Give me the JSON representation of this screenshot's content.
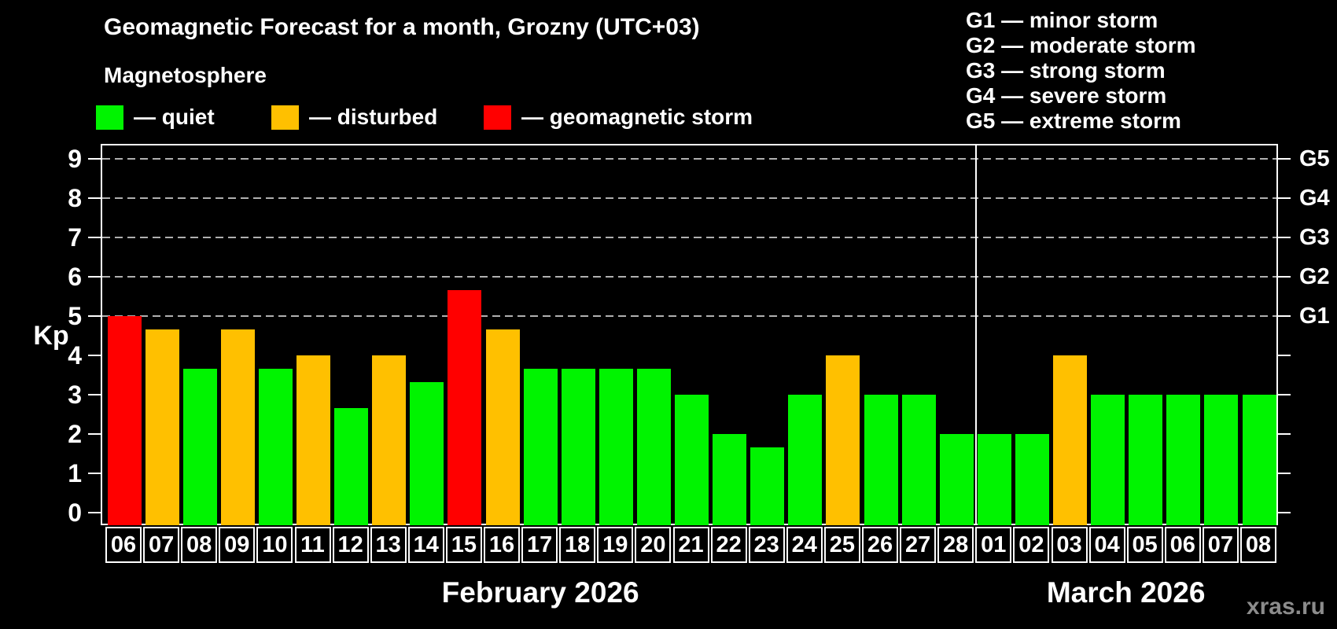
{
  "chart_data": {
    "type": "bar",
    "title": "Geomagnetic Forecast for a month, Grozny (UTC+03)",
    "subtitle": "Magnetosphere",
    "ylabel": "Kp",
    "watermark": "xras.ru",
    "ylim": [
      0,
      9
    ],
    "grid": "dashed horizontal lines at Kp 5-9 only",
    "legend_position": "top-left row",
    "colors": {
      "quiet": "#00f400",
      "disturbed": "#ffc000",
      "storm": "#ff0000",
      "axis": "#ffffff",
      "grid": "#b0b0b0",
      "background": "#000000",
      "watermark": "#8c8c8c"
    },
    "legend": [
      {
        "key": "quiet",
        "label": "— quiet"
      },
      {
        "key": "disturbed",
        "label": "— disturbed"
      },
      {
        "key": "storm",
        "label": "— geomagnetic storm"
      }
    ],
    "g_scale_legend": [
      "G1 — minor storm",
      "G2 — moderate storm",
      "G3 — strong storm",
      "G4 — severe storm",
      "G5 — extreme storm"
    ],
    "y_axis_ticks": [
      0,
      1,
      2,
      3,
      4,
      5,
      6,
      7,
      8,
      9
    ],
    "gridline_kp": [
      5,
      6,
      7,
      8,
      9
    ],
    "right_axis_labels": [
      {
        "kp": 5,
        "label": "G1"
      },
      {
        "kp": 6,
        "label": "G2"
      },
      {
        "kp": 7,
        "label": "G3"
      },
      {
        "kp": 8,
        "label": "G4"
      },
      {
        "kp": 9,
        "label": "G5"
      }
    ],
    "months": [
      {
        "label": "February 2026",
        "start_index": 0,
        "count": 23
      },
      {
        "label": "March 2026",
        "start_index": 23,
        "count": 8
      }
    ],
    "bars": [
      {
        "day": "06",
        "kp": 5.0,
        "level": "storm"
      },
      {
        "day": "07",
        "kp": 4.67,
        "level": "disturbed"
      },
      {
        "day": "08",
        "kp": 3.67,
        "level": "quiet"
      },
      {
        "day": "09",
        "kp": 4.67,
        "level": "disturbed"
      },
      {
        "day": "10",
        "kp": 3.67,
        "level": "quiet"
      },
      {
        "day": "11",
        "kp": 4.0,
        "level": "disturbed"
      },
      {
        "day": "12",
        "kp": 2.67,
        "level": "quiet"
      },
      {
        "day": "13",
        "kp": 4.0,
        "level": "disturbed"
      },
      {
        "day": "14",
        "kp": 3.33,
        "level": "quiet"
      },
      {
        "day": "15",
        "kp": 5.67,
        "level": "storm"
      },
      {
        "day": "16",
        "kp": 4.67,
        "level": "disturbed"
      },
      {
        "day": "17",
        "kp": 3.67,
        "level": "quiet"
      },
      {
        "day": "18",
        "kp": 3.67,
        "level": "quiet"
      },
      {
        "day": "19",
        "kp": 3.67,
        "level": "quiet"
      },
      {
        "day": "20",
        "kp": 3.67,
        "level": "quiet"
      },
      {
        "day": "21",
        "kp": 3.0,
        "level": "quiet"
      },
      {
        "day": "22",
        "kp": 2.0,
        "level": "quiet"
      },
      {
        "day": "23",
        "kp": 1.67,
        "level": "quiet"
      },
      {
        "day": "24",
        "kp": 3.0,
        "level": "quiet"
      },
      {
        "day": "25",
        "kp": 4.0,
        "level": "disturbed"
      },
      {
        "day": "26",
        "kp": 3.0,
        "level": "quiet"
      },
      {
        "day": "27",
        "kp": 3.0,
        "level": "quiet"
      },
      {
        "day": "28",
        "kp": 2.0,
        "level": "quiet"
      },
      {
        "day": "01",
        "kp": 2.0,
        "level": "quiet"
      },
      {
        "day": "02",
        "kp": 2.0,
        "level": "quiet"
      },
      {
        "day": "03",
        "kp": 4.0,
        "level": "disturbed"
      },
      {
        "day": "04",
        "kp": 3.0,
        "level": "quiet"
      },
      {
        "day": "05",
        "kp": 3.0,
        "level": "quiet"
      },
      {
        "day": "06",
        "kp": 3.0,
        "level": "quiet"
      },
      {
        "day": "07",
        "kp": 3.0,
        "level": "quiet"
      },
      {
        "day": "08",
        "kp": 3.0,
        "level": "quiet"
      }
    ]
  }
}
